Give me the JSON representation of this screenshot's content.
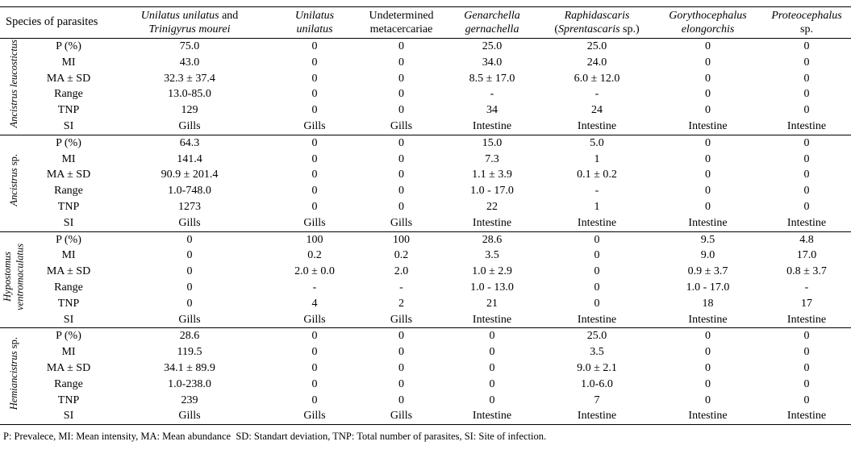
{
  "header": {
    "species_label": "Species of parasites",
    "columns": [
      {
        "lines": [
          [
            {
              "text": "Unilatus unilatus",
              "italic": true
            },
            {
              "text": " and",
              "italic": false
            }
          ],
          [
            {
              "text": "Trinigyrus mourei",
              "italic": true
            }
          ]
        ]
      },
      {
        "lines": [
          [
            {
              "text": "Unilatus",
              "italic": true
            }
          ],
          [
            {
              "text": "unilatus",
              "italic": true
            }
          ]
        ]
      },
      {
        "lines": [
          [
            {
              "text": "Undetermined",
              "italic": false
            }
          ],
          [
            {
              "text": "metacercariae",
              "italic": false
            }
          ]
        ]
      },
      {
        "lines": [
          [
            {
              "text": "Genarchella",
              "italic": true
            }
          ],
          [
            {
              "text": "gernachella",
              "italic": true
            }
          ]
        ]
      },
      {
        "lines": [
          [
            {
              "text": "Raphidascaris",
              "italic": true
            }
          ],
          [
            {
              "text": "(",
              "italic": false
            },
            {
              "text": "Sprentascaris",
              "italic": true
            },
            {
              "text": " sp.)",
              "italic": false
            }
          ]
        ]
      },
      {
        "lines": [
          [
            {
              "text": "Gorythocephalus",
              "italic": true
            }
          ],
          [
            {
              "text": "elongorchis",
              "italic": true
            }
          ]
        ]
      },
      {
        "lines": [
          [
            {
              "text": "Proteocephalus",
              "italic": true
            }
          ],
          [
            {
              "text": "sp.",
              "italic": false
            }
          ]
        ]
      }
    ]
  },
  "row_labels": [
    "P (%)",
    "MI",
    "MA ± SD",
    "Range",
    "TNP",
    "SI"
  ],
  "groups": [
    {
      "host": {
        "lines": [
          [
            {
              "text": "Ancistrus leucostictus",
              "italic": true
            }
          ]
        ]
      },
      "rows": [
        [
          "75.0",
          "0",
          "0",
          "25.0",
          "25.0",
          "0",
          "0"
        ],
        [
          "43.0",
          "0",
          "0",
          "34.0",
          "24.0",
          "0",
          "0"
        ],
        [
          "32.3 ± 37.4",
          "0",
          "0",
          "8.5 ± 17.0",
          "6.0 ± 12.0",
          "0",
          "0"
        ],
        [
          "13.0-85.0",
          "0",
          "0",
          "-",
          "-",
          "0",
          "0"
        ],
        [
          "129",
          "0",
          "0",
          "34",
          "24",
          "0",
          "0"
        ],
        [
          "Gills",
          "Gills",
          "Gills",
          "Intestine",
          "Intestine",
          "Intestine",
          "Intestine"
        ]
      ]
    },
    {
      "host": {
        "lines": [
          [
            {
              "text": "Ancistrus",
              "italic": true
            },
            {
              "text": " sp.",
              "italic": false
            }
          ]
        ]
      },
      "rows": [
        [
          "64.3",
          "0",
          "0",
          "15.0",
          "5.0",
          "0",
          "0"
        ],
        [
          "141.4",
          "0",
          "0",
          "7.3",
          "1",
          "0",
          "0"
        ],
        [
          "90.9 ± 201.4",
          "0",
          "0",
          "1.1 ± 3.9",
          "0.1 ± 0.2",
          "0",
          "0"
        ],
        [
          "1.0-748.0",
          "0",
          "0",
          "1.0 - 17.0",
          "-",
          "0",
          "0"
        ],
        [
          "1273",
          "0",
          "0",
          "22",
          "1",
          "0",
          "0"
        ],
        [
          "Gills",
          "Gills",
          "Gills",
          "Intestine",
          "Intestine",
          "Intestine",
          "Intestine"
        ]
      ]
    },
    {
      "host": {
        "lines": [
          [
            {
              "text": "Hypostomus",
              "italic": true
            }
          ],
          [
            {
              "text": "ventromaculatus",
              "italic": true
            }
          ]
        ]
      },
      "rows": [
        [
          "0",
          "100",
          "100",
          "28.6",
          "0",
          "9.5",
          "4.8"
        ],
        [
          "0",
          "0.2",
          "0.2",
          "3.5",
          "0",
          "9.0",
          "17.0"
        ],
        [
          "0",
          "2.0 ± 0.0",
          "2.0",
          "1.0 ± 2.9",
          "0",
          "0.9 ± 3.7",
          "0.8 ± 3.7"
        ],
        [
          "0",
          "-",
          "-",
          "1.0 - 13.0",
          "0",
          "1.0 - 17.0",
          "-"
        ],
        [
          "0",
          "4",
          "2",
          "21",
          "0",
          "18",
          "17"
        ],
        [
          "Gills",
          "Gills",
          "Gills",
          "Intestine",
          "Intestine",
          "Intestine",
          "Intestine"
        ]
      ]
    },
    {
      "host": {
        "lines": [
          [
            {
              "text": "Hemiancistrus",
              "italic": true
            },
            {
              "text": " sp.",
              "italic": false
            }
          ]
        ]
      },
      "rows": [
        [
          "28.6",
          "0",
          "0",
          "0",
          "25.0",
          "0",
          "0"
        ],
        [
          "119.5",
          "0",
          "0",
          "0",
          "3.5",
          "0",
          "0"
        ],
        [
          "34.1 ± 89.9",
          "0",
          "0",
          "0",
          "9.0 ± 2.1",
          "0",
          "0"
        ],
        [
          "1.0-238.0",
          "0",
          "0",
          "0",
          "1.0-6.0",
          "0",
          "0"
        ],
        [
          "239",
          "0",
          "0",
          "0",
          "7",
          "0",
          "0"
        ],
        [
          "Gills",
          "Gills",
          "Gills",
          "Intestine",
          "Intestine",
          "Intestine",
          "Intestine"
        ]
      ]
    }
  ],
  "footnote": "P: Prevalece, MI: Mean intensity, MA: Mean abundance  SD: Standart deviation, TNP: Total number of parasites, SI: Site of infection."
}
